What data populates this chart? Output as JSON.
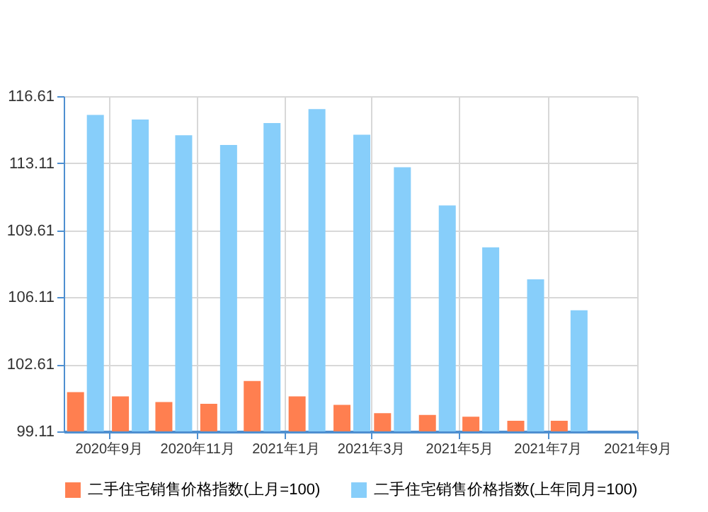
{
  "chart_data": {
    "type": "bar",
    "x": [
      "2020-08-16",
      "2020-09-16",
      "2020-10-16",
      "2020-11-16",
      "2020-12-16",
      "2021-01-16",
      "2021-02-16",
      "2021-03-16",
      "2021-04-16",
      "2021-05-16",
      "2021-06-16",
      "2021-07-16"
    ],
    "series": [
      {
        "name": "二手住宅销售价格指数(上月=100)",
        "color": "#ff7f50",
        "values": [
          101.16,
          100.94,
          100.64,
          100.55,
          101.74,
          100.94,
          100.49,
          100.06,
          99.97,
          99.88,
          99.66,
          99.66
        ]
      },
      {
        "name": "二手住宅销售价格指数(上年同月=100)",
        "color": "#87cefa",
        "values": [
          115.63,
          115.39,
          114.57,
          114.06,
          115.21,
          115.94,
          114.6,
          112.9,
          110.91,
          108.72,
          107.05,
          105.43
        ]
      }
    ],
    "xlim": [
      "2020-08-01",
      "2021-09-01"
    ],
    "xticks": [
      {
        "value": "2020-09-01",
        "label": "2020年9月"
      },
      {
        "value": "2020-11-01",
        "label": "2020年11月"
      },
      {
        "value": "2021-01-01",
        "label": "2021年1月"
      },
      {
        "value": "2021-03-01",
        "label": "2021年3月"
      },
      {
        "value": "2021-05-01",
        "label": "2021年5月"
      },
      {
        "value": "2021-07-01",
        "label": "2021年7月"
      },
      {
        "value": "2021-09-01",
        "label": "2021年9月"
      }
    ],
    "ylim": [
      99.11,
      116.61
    ],
    "yticks": [
      99.11,
      102.61,
      106.11,
      109.61,
      113.11,
      116.61
    ],
    "grid": true,
    "legend": "bottom"
  }
}
